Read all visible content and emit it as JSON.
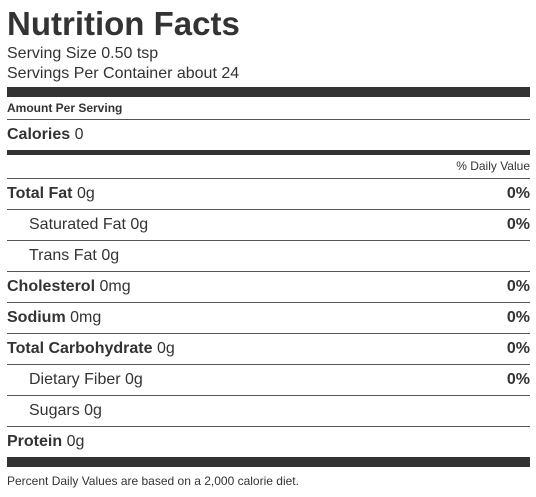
{
  "label": {
    "title": "Nutrition Facts",
    "serving_size": "Serving Size 0.50 tsp",
    "servings_per_container": "Servings Per Container about 24",
    "amount_per_serving": "Amount Per Serving",
    "calories_label": "Calories",
    "calories_value": "0",
    "daily_value_header": "% Daily Value",
    "nutrients": [
      {
        "name": "Total Fat",
        "amount": "0g",
        "dv": "0%"
      },
      {
        "name": "Saturated Fat",
        "amount": "0g",
        "dv": "0%"
      },
      {
        "name": "Trans Fat",
        "amount": "0g",
        "dv": ""
      },
      {
        "name": "Cholesterol",
        "amount": "0mg",
        "dv": "0%"
      },
      {
        "name": "Sodium",
        "amount": "0mg",
        "dv": "0%"
      },
      {
        "name": "Total Carbohydrate",
        "amount": "0g",
        "dv": "0%"
      },
      {
        "name": "Dietary Fiber",
        "amount": "0g",
        "dv": "0%"
      },
      {
        "name": "Sugars",
        "amount": "0g",
        "dv": ""
      },
      {
        "name": "Protein",
        "amount": "0g",
        "dv": ""
      }
    ],
    "footnote": "Percent Daily Values are based on a 2,000 calorie diet."
  },
  "colors": {
    "text": "#333333",
    "rule": "#333333"
  }
}
